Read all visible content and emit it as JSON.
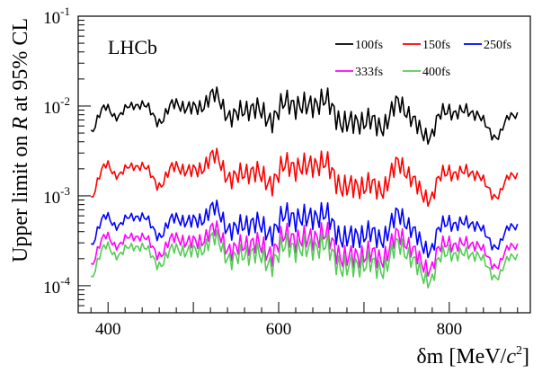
{
  "chart_data": {
    "type": "line",
    "title": "",
    "watermark": "LHCb",
    "xlabel_main": "δm [MeV/",
    "xlabel_c": "c",
    "xlabel_exp": "2",
    "xlabel_end": "]",
    "ylabel_prefix": "Upper limit on ",
    "ylabel_var": "R",
    "ylabel_suffix": " at 95% CL",
    "x_scale": "linear",
    "y_scale": "log",
    "xlim": [
      365,
      895
    ],
    "ylim": [
      5e-05,
      0.1
    ],
    "x_ticks": [
      {
        "value": 400,
        "label": "400"
      },
      {
        "value": 600,
        "label": "600"
      },
      {
        "value": 800,
        "label": "800"
      }
    ],
    "y_ticks": [
      {
        "value": 0.0001,
        "base": "10",
        "exp": "-4"
      },
      {
        "value": 0.001,
        "base": "10",
        "exp": "-3"
      },
      {
        "value": 0.01,
        "base": "10",
        "exp": "-2"
      },
      {
        "value": 0.1,
        "base": "10",
        "exp": "-1"
      }
    ],
    "legend_position": "top-right",
    "x": [
      380,
      400,
      420,
      440,
      460,
      480,
      500,
      520,
      540,
      560,
      580,
      600,
      620,
      640,
      660,
      680,
      700,
      720,
      740,
      760,
      780,
      800,
      820,
      840,
      860,
      880
    ],
    "series": [
      {
        "name": "100fs",
        "color": "#000000",
        "values": [
          0.0055,
          0.0085,
          0.0098,
          0.0092,
          0.0082,
          0.009,
          0.0105,
          0.0115,
          0.0092,
          0.0085,
          0.0082,
          0.009,
          0.0098,
          0.012,
          0.0088,
          0.0072,
          0.0058,
          0.007,
          0.0095,
          0.007,
          0.0045,
          0.01,
          0.009,
          0.006,
          0.0055,
          0.0075
        ]
      },
      {
        "name": "150fs",
        "color": "#ff0000",
        "values": [
          0.001,
          0.002,
          0.0021,
          0.0019,
          0.0016,
          0.0018,
          0.0021,
          0.0024,
          0.0019,
          0.0017,
          0.0016,
          0.0018,
          0.002,
          0.0026,
          0.0017,
          0.0014,
          0.0011,
          0.0014,
          0.002,
          0.0015,
          0.0009,
          0.0021,
          0.0019,
          0.0013,
          0.0012,
          0.0016
        ]
      },
      {
        "name": "250fs",
        "color": "#0000ff",
        "values": [
          0.0003,
          0.00053,
          0.00058,
          0.00052,
          0.00044,
          0.00048,
          0.00058,
          0.00063,
          0.00051,
          0.00045,
          0.00044,
          0.0005,
          0.00055,
          0.00068,
          0.00046,
          0.00038,
          0.00032,
          0.0004,
          0.00054,
          0.00041,
          0.00024,
          0.00058,
          0.00051,
          0.00036,
          0.00033,
          0.00043
        ]
      },
      {
        "name": "333fs",
        "color": "#ff00ff",
        "values": [
          0.00018,
          0.00032,
          0.00035,
          0.00031,
          0.00027,
          0.00029,
          0.00034,
          0.00037,
          0.0003,
          0.00027,
          0.00026,
          0.0003,
          0.00032,
          0.0004,
          0.00028,
          0.00023,
          0.00019,
          0.00024,
          0.00032,
          0.00025,
          0.00015,
          0.00034,
          0.0003,
          0.00022,
          0.0002,
          0.00026
        ]
      },
      {
        "name": "400fs",
        "color": "#55cc55",
        "values": [
          0.00013,
          0.00025,
          0.00027,
          0.00024,
          0.00021,
          0.00022,
          0.00027,
          0.00029,
          0.00024,
          0.00021,
          0.0002,
          0.00023,
          0.00025,
          0.00031,
          0.00021,
          0.00018,
          0.00015,
          0.00018,
          0.00025,
          0.00019,
          0.00011,
          0.00027,
          0.00023,
          0.00017,
          0.00015,
          0.0002
        ]
      }
    ]
  }
}
